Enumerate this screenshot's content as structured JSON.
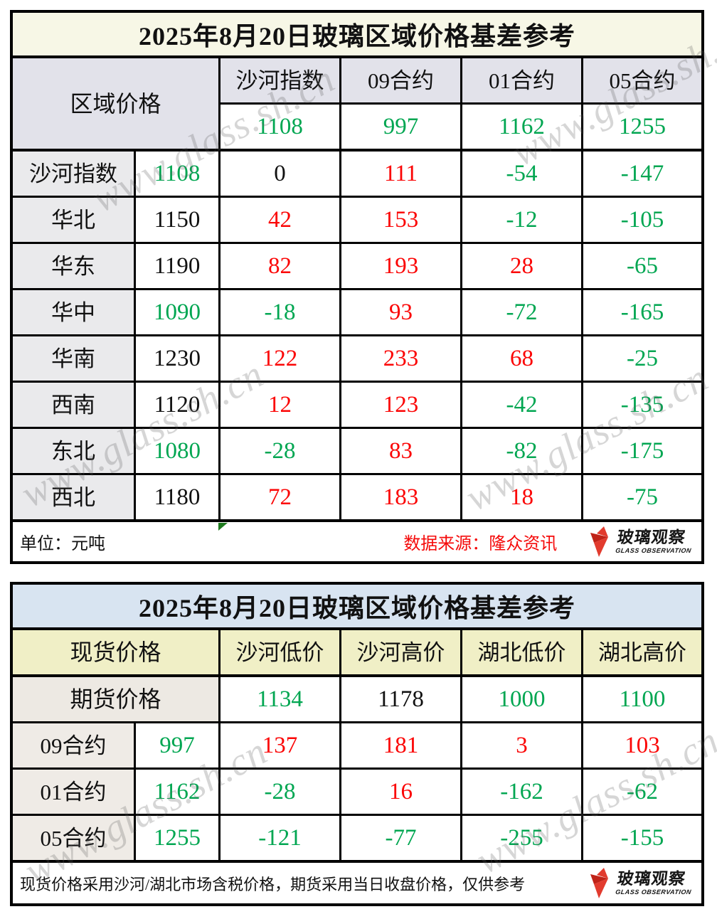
{
  "watermark": "www.glass.sh.cn",
  "palette": {
    "g": "#00A651",
    "r": "#FB0505",
    "k": "#111111"
  },
  "logo": {
    "cn": "玻璃观察",
    "en": "GLASS OBSERVATION"
  },
  "chart_data": [
    {
      "type": "table",
      "title": "2025年8月20日玻璃区域价格基差参考",
      "corner_label": "区域价格",
      "columns": [
        "沙河指数",
        "09合约",
        "01合约",
        "05合约"
      ],
      "header_values": [
        {
          "t": "1108",
          "c": "g"
        },
        {
          "t": "997",
          "c": "g"
        },
        {
          "t": "1162",
          "c": "g"
        },
        {
          "t": "1255",
          "c": "g"
        }
      ],
      "rows": [
        {
          "label": "沙河指数",
          "cells": [
            {
              "t": "1108",
              "c": "g"
            },
            {
              "t": "0",
              "c": "k"
            },
            {
              "t": "111",
              "c": "r"
            },
            {
              "t": "-54",
              "c": "g"
            },
            {
              "t": "-147",
              "c": "g"
            }
          ]
        },
        {
          "label": "华北",
          "cells": [
            {
              "t": "1150",
              "c": "k"
            },
            {
              "t": "42",
              "c": "r"
            },
            {
              "t": "153",
              "c": "r"
            },
            {
              "t": "-12",
              "c": "g"
            },
            {
              "t": "-105",
              "c": "g"
            }
          ]
        },
        {
          "label": "华东",
          "cells": [
            {
              "t": "1190",
              "c": "k"
            },
            {
              "t": "82",
              "c": "r"
            },
            {
              "t": "193",
              "c": "r"
            },
            {
              "t": "28",
              "c": "r"
            },
            {
              "t": "-65",
              "c": "g"
            }
          ]
        },
        {
          "label": "华中",
          "cells": [
            {
              "t": "1090",
              "c": "g"
            },
            {
              "t": "-18",
              "c": "g"
            },
            {
              "t": "93",
              "c": "r"
            },
            {
              "t": "-72",
              "c": "g"
            },
            {
              "t": "-165",
              "c": "g"
            }
          ]
        },
        {
          "label": "华南",
          "cells": [
            {
              "t": "1230",
              "c": "k"
            },
            {
              "t": "122",
              "c": "r"
            },
            {
              "t": "233",
              "c": "r"
            },
            {
              "t": "68",
              "c": "r"
            },
            {
              "t": "-25",
              "c": "g"
            }
          ]
        },
        {
          "label": "西南",
          "cells": [
            {
              "t": "1120",
              "c": "k"
            },
            {
              "t": "12",
              "c": "r"
            },
            {
              "t": "123",
              "c": "r"
            },
            {
              "t": "-42",
              "c": "g"
            },
            {
              "t": "-135",
              "c": "g"
            }
          ]
        },
        {
          "label": "东北",
          "cells": [
            {
              "t": "1080",
              "c": "g"
            },
            {
              "t": "-28",
              "c": "g"
            },
            {
              "t": "83",
              "c": "r"
            },
            {
              "t": "-82",
              "c": "g"
            },
            {
              "t": "-175",
              "c": "g"
            }
          ]
        },
        {
          "label": "西北",
          "cells": [
            {
              "t": "1180",
              "c": "k"
            },
            {
              "t": "72",
              "c": "r"
            },
            {
              "t": "183",
              "c": "r"
            },
            {
              "t": "18",
              "c": "r"
            },
            {
              "t": "-75",
              "c": "g"
            }
          ]
        }
      ],
      "footer_unit": "单位：元吨",
      "footer_source": "数据来源：隆众资讯"
    },
    {
      "type": "table",
      "title": "2025年8月20日玻璃区域价格基差参考",
      "corner_label": "现货价格",
      "columns": [
        "沙河低价",
        "沙河高价",
        "湖北低价",
        "湖北高价"
      ],
      "futures_label": "期货价格",
      "futures_values": [
        {
          "t": "1134",
          "c": "g"
        },
        {
          "t": "1178",
          "c": "k"
        },
        {
          "t": "1000",
          "c": "g"
        },
        {
          "t": "1100",
          "c": "g"
        }
      ],
      "rows": [
        {
          "label": "09合约",
          "cells": [
            {
              "t": "997",
              "c": "g"
            },
            {
              "t": "137",
              "c": "r"
            },
            {
              "t": "181",
              "c": "r"
            },
            {
              "t": "3",
              "c": "r"
            },
            {
              "t": "103",
              "c": "r"
            }
          ]
        },
        {
          "label": "01合约",
          "cells": [
            {
              "t": "1162",
              "c": "g"
            },
            {
              "t": "-28",
              "c": "g"
            },
            {
              "t": "16",
              "c": "r"
            },
            {
              "t": "-162",
              "c": "g"
            },
            {
              "t": "-62",
              "c": "g"
            }
          ]
        },
        {
          "label": "05合约",
          "cells": [
            {
              "t": "1255",
              "c": "g"
            },
            {
              "t": "-121",
              "c": "g"
            },
            {
              "t": "-77",
              "c": "g"
            },
            {
              "t": "-255",
              "c": "g"
            },
            {
              "t": "-155",
              "c": "g"
            }
          ]
        }
      ],
      "footer_note": "现货价格采用沙河/湖北市场含税价格，期货采用当日收盘价格，仅供参考"
    }
  ]
}
